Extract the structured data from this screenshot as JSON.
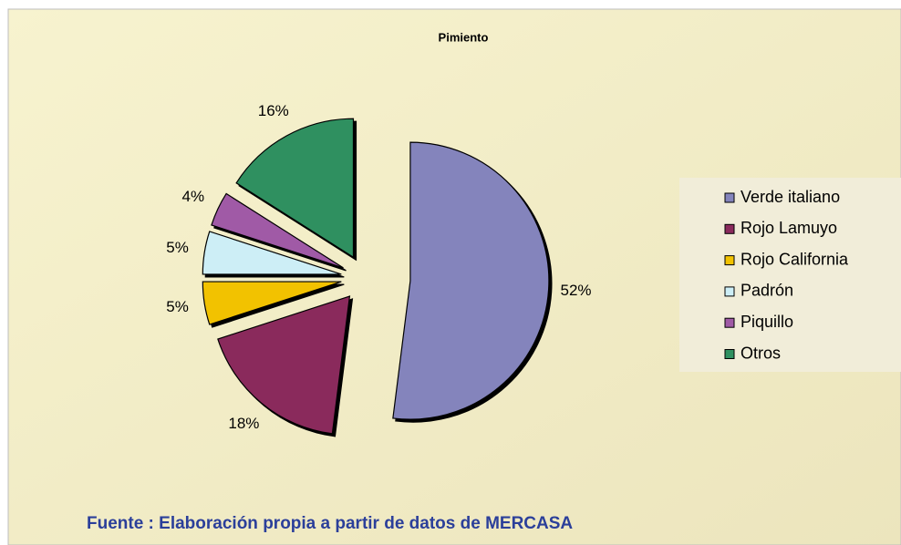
{
  "chart_data": {
    "type": "pie",
    "title": "Pimiento",
    "categories": [
      "Verde italiano",
      "Rojo Lamuyo",
      "Rojo California",
      "Padrón",
      "Piquillo",
      "Otros"
    ],
    "values": [
      52,
      18,
      5,
      5,
      4,
      16
    ],
    "value_labels": [
      "52%",
      "18%",
      "5%",
      "5%",
      "4%",
      "16%"
    ],
    "colors": [
      "#8484bc",
      "#8a2a5c",
      "#f2c200",
      "#cdeef6",
      "#a05aa6",
      "#2f9060"
    ],
    "legend": "right",
    "source": "Fuente : Elaboración propia a partir de datos de MERCASA"
  }
}
